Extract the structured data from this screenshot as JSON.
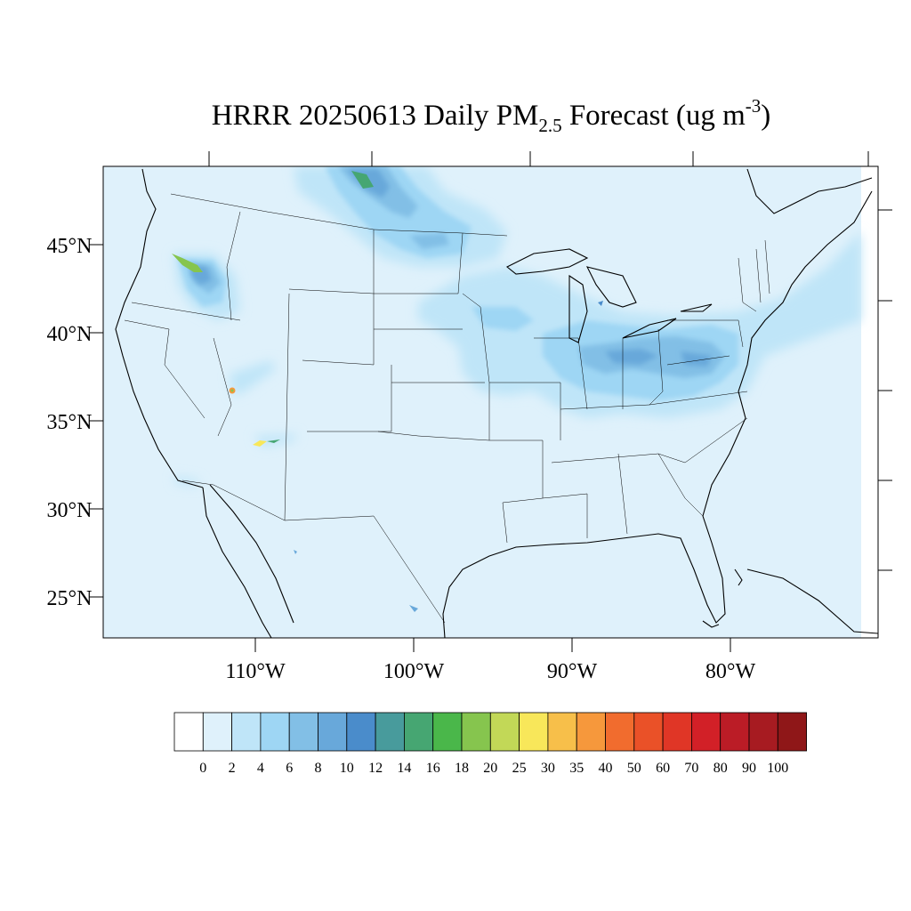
{
  "title": {
    "prefix": "HRRR 20250613 Daily PM",
    "subscript": "2.5",
    "middle": " Forecast (ug m",
    "superscript": "-3",
    "suffix": ")"
  },
  "map": {
    "lat_labels": [
      "45°N",
      "40°N",
      "35°N",
      "30°N",
      "25°N"
    ],
    "lon_labels": [
      "110°W",
      "100°W",
      "90°W",
      "80°W"
    ],
    "background_color": "#dff1fb"
  },
  "colorbar": {
    "labels": [
      "0",
      "2",
      "4",
      "6",
      "8",
      "10",
      "12",
      "14",
      "16",
      "18",
      "20",
      "25",
      "30",
      "35",
      "40",
      "50",
      "60",
      "70",
      "80",
      "90",
      "100"
    ],
    "colors": [
      "#ffffff",
      "#dff1fb",
      "#bfe5f8",
      "#9ed6f4",
      "#82bfe6",
      "#68a8da",
      "#4a8ccb",
      "#489b9c",
      "#46a672",
      "#4ab74a",
      "#86c54e",
      "#c2d857",
      "#f8e75a",
      "#f7bf4a",
      "#f6983c",
      "#f16c2e",
      "#ea5128",
      "#e03626",
      "#d22027",
      "#bb1c26",
      "#a71b21",
      "#8f1718"
    ]
  }
}
